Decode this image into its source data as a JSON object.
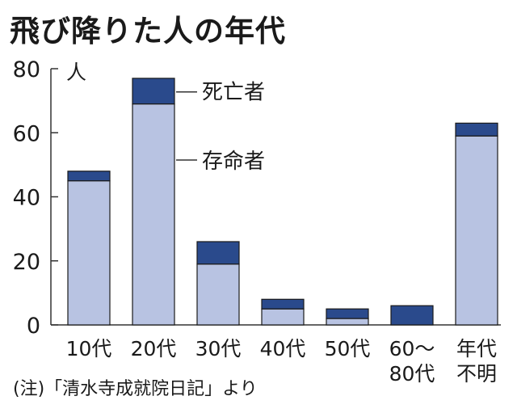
{
  "chart_data": {
    "type": "bar",
    "stacked": true,
    "title": "飛び降りた人の年代",
    "unit": "人",
    "ylim": [
      0,
      80
    ],
    "yticks": [
      0,
      20,
      40,
      60,
      80
    ],
    "categories": [
      [
        "10代"
      ],
      [
        "20代"
      ],
      [
        "30代"
      ],
      [
        "40代"
      ],
      [
        "50代"
      ],
      [
        "60～",
        "80代"
      ],
      [
        "年代",
        "不明"
      ]
    ],
    "series": [
      {
        "name": "存命者",
        "color": "#b8c3e2",
        "values": [
          45,
          69,
          19,
          5,
          2,
          0,
          59
        ]
      },
      {
        "name": "死亡者",
        "color": "#2a4a8c",
        "values": [
          3,
          8,
          7,
          3,
          3,
          6,
          4
        ]
      }
    ],
    "legend": "inline-labels-beside-20s-bar",
    "grid": false
  },
  "footnote": "(注)「清水寺成就院日記」より"
}
